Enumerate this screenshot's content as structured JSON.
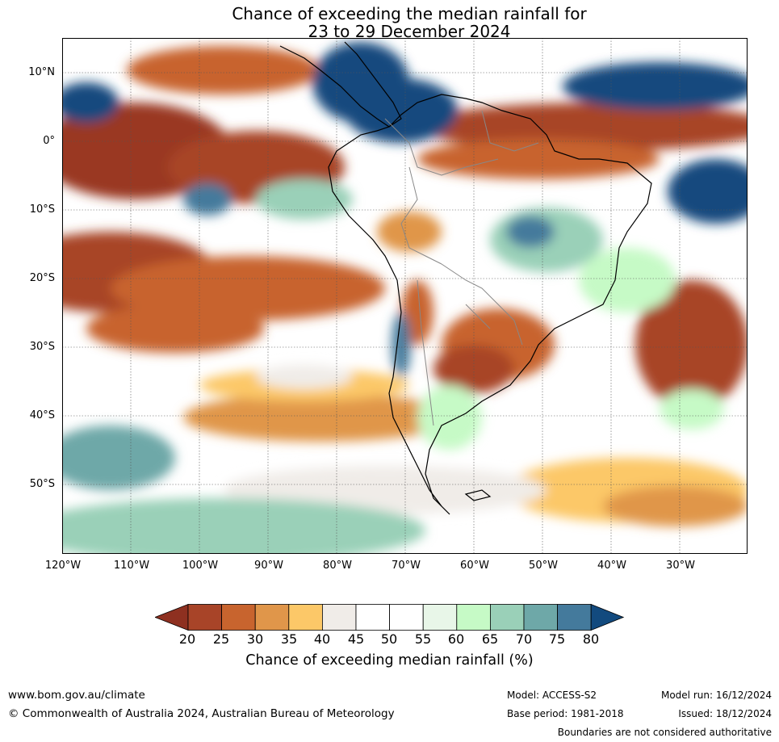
{
  "title": {
    "line1": "Chance of exceeding the median rainfall for",
    "line2": "23 to 29 December 2024"
  },
  "map": {
    "lat_labels": [
      "10°N",
      "0°",
      "10°S",
      "20°S",
      "30°S",
      "40°S",
      "50°S"
    ],
    "lon_labels": [
      "120°W",
      "110°W",
      "100°W",
      "90°W",
      "80°W",
      "70°W",
      "60°W",
      "50°W",
      "40°W",
      "30°W"
    ]
  },
  "colorbar": {
    "ticks": [
      "20",
      "25",
      "30",
      "35",
      "40",
      "45",
      "50",
      "55",
      "60",
      "65",
      "70",
      "75",
      "80"
    ],
    "under_color": "#8e3020",
    "over_color": "#124a7e",
    "colors": [
      "#a84428",
      "#c8642e",
      "#e0964a",
      "#fcc868",
      "#f0ece8",
      "#ffffff",
      "#ffffff",
      "#e8f6e8",
      "#c6fac6",
      "#9ad0b8",
      "#6ea8a8",
      "#447a9c"
    ],
    "label": "Chance of exceeding median rainfall (%)"
  },
  "footer": {
    "website": "www.bom.gov.au/climate",
    "copyright": "© Commonwealth of Australia 2024, Australian Bureau of Meteorology",
    "model": "Model: ACCESS-S2",
    "base_period": "Base period: 1981-2018",
    "model_run": "Model run: 16/12/2024",
    "issued": "Issued: 18/12/2024",
    "disclaimer": "Boundaries are not considered authoritative"
  }
}
